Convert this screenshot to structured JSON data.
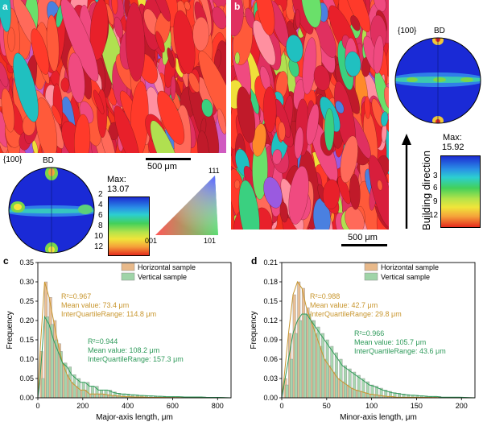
{
  "panel_labels": {
    "a": "a",
    "b": "b",
    "c": "c",
    "d": "d"
  },
  "pole_figure_a": {
    "plane": "{100}",
    "direction": "BD",
    "max_label": "Max:",
    "max_value": "13.07",
    "levels": [
      "2",
      "4",
      "6",
      "8",
      "10",
      "12"
    ]
  },
  "pole_figure_b": {
    "plane": "{100}",
    "direction": "BD",
    "max_label": "Max:",
    "max_value": "15.92",
    "levels": [
      "3",
      "6",
      "9",
      "12"
    ]
  },
  "scale_bar_a": "500 μm",
  "scale_bar_b": "500 μm",
  "ipf_key": {
    "top": "111",
    "left": "001",
    "right": "101"
  },
  "building_direction": "Building direction",
  "colors": {
    "horizontal": "#e8b98a",
    "horizontal_line": "#c8962e",
    "vertical": "#9fd4a8",
    "vertical_line": "#2e9a5a",
    "ebsd_base": "#f2301e"
  },
  "chart_data": [
    {
      "type": "bar",
      "panel": "c",
      "xlabel": "Major-axis length, μm",
      "ylabel": "Frequency",
      "xlim": [
        0,
        860
      ],
      "ylim": [
        0,
        0.35
      ],
      "xticks": [
        0,
        200,
        400,
        600,
        800
      ],
      "yticks": [
        0.0,
        0.05,
        0.1,
        0.15,
        0.2,
        0.25,
        0.3,
        0.35
      ],
      "legend": "top-right",
      "series": [
        {
          "name": "Horizontal sample",
          "bin_width": 20,
          "x": [
            20,
            40,
            60,
            80,
            100,
            120,
            140,
            160,
            180,
            200,
            220,
            240,
            260,
            280,
            300,
            320,
            340,
            360,
            380,
            400,
            420,
            440,
            460,
            480,
            500,
            520,
            540
          ],
          "values": [
            0.12,
            0.3,
            0.26,
            0.2,
            0.14,
            0.09,
            0.06,
            0.04,
            0.03,
            0.02,
            0.02,
            0.01,
            0.01,
            0.01,
            0.01,
            0.008,
            0.006,
            0.005,
            0.004,
            0.003,
            0.003,
            0.002,
            0.002,
            0.002,
            0.001,
            0.001,
            0.001
          ],
          "annotation": {
            "r2": "R²=0.967",
            "mean": "Mean value: 73.4 μm",
            "iqr": "InterQuartileRange: 114.8 μm"
          }
        },
        {
          "name": "Vertical sample",
          "bin_width": 20,
          "x": [
            20,
            40,
            60,
            80,
            100,
            120,
            140,
            160,
            180,
            200,
            220,
            240,
            260,
            280,
            300,
            320,
            340,
            360,
            380,
            400,
            420,
            440,
            460,
            480,
            500,
            520,
            540,
            560,
            580,
            600,
            620,
            640,
            660,
            680,
            700,
            720,
            740,
            760,
            780,
            800,
            820
          ],
          "values": [
            0.05,
            0.21,
            0.19,
            0.15,
            0.12,
            0.09,
            0.08,
            0.06,
            0.05,
            0.04,
            0.04,
            0.03,
            0.03,
            0.02,
            0.02,
            0.02,
            0.015,
            0.012,
            0.01,
            0.01,
            0.008,
            0.008,
            0.006,
            0.006,
            0.005,
            0.005,
            0.004,
            0.004,
            0.003,
            0.003,
            0.003,
            0.003,
            0.002,
            0.002,
            0.002,
            0.002,
            0.002,
            0.001,
            0.001,
            0.001,
            0.001
          ],
          "annotation": {
            "r2": "R²=0.944",
            "mean": "Mean value: 108.2 μm",
            "iqr": "InterQuartileRange: 157.3 μm"
          }
        }
      ]
    },
    {
      "type": "bar",
      "panel": "d",
      "xlabel": "Minor-axis length, μm",
      "ylabel": "Frequency",
      "xlim": [
        0,
        215
      ],
      "ylim": [
        0,
        0.21
      ],
      "xticks": [
        0,
        50,
        100,
        150,
        200
      ],
      "yticks": [
        0.0,
        0.03,
        0.06,
        0.09,
        0.12,
        0.15,
        0.18,
        0.21
      ],
      "legend": "top-right",
      "series": [
        {
          "name": "Horizontal sample",
          "bin_width": 5,
          "x": [
            5,
            10,
            15,
            20,
            25,
            30,
            35,
            40,
            45,
            50,
            55,
            60,
            65,
            70,
            75,
            80,
            85,
            90,
            95,
            100,
            105,
            110,
            115,
            120,
            125,
            130
          ],
          "values": [
            0.03,
            0.1,
            0.16,
            0.18,
            0.17,
            0.14,
            0.12,
            0.1,
            0.08,
            0.06,
            0.05,
            0.04,
            0.03,
            0.025,
            0.02,
            0.015,
            0.012,
            0.01,
            0.008,
            0.006,
            0.005,
            0.004,
            0.003,
            0.002,
            0.002,
            0.001
          ],
          "annotation": {
            "r2": "R²=0.988",
            "mean": "Mean value: 42.7 μm",
            "iqr": "InterQuartileRange: 29.8 μm"
          }
        },
        {
          "name": "Vertical sample",
          "bin_width": 5,
          "x": [
            5,
            10,
            15,
            20,
            25,
            30,
            35,
            40,
            45,
            50,
            55,
            60,
            65,
            70,
            75,
            80,
            85,
            90,
            95,
            100,
            105,
            110,
            115,
            120,
            125,
            130,
            135,
            140,
            145,
            150,
            155,
            160,
            165,
            170,
            175,
            180,
            185,
            190,
            195,
            200
          ],
          "values": [
            0.02,
            0.06,
            0.1,
            0.12,
            0.13,
            0.13,
            0.12,
            0.11,
            0.1,
            0.09,
            0.08,
            0.07,
            0.06,
            0.05,
            0.045,
            0.04,
            0.035,
            0.03,
            0.025,
            0.02,
            0.018,
            0.015,
            0.012,
            0.01,
            0.008,
            0.007,
            0.006,
            0.005,
            0.004,
            0.004,
            0.003,
            0.003,
            0.002,
            0.002,
            0.002,
            0.001,
            0.001,
            0.001,
            0.001,
            0.001
          ],
          "annotation": {
            "r2": "R²=0.966",
            "mean": "Mean value: 105.7 μm",
            "iqr": "InterQuartileRange: 43.6 μm"
          }
        }
      ]
    }
  ]
}
